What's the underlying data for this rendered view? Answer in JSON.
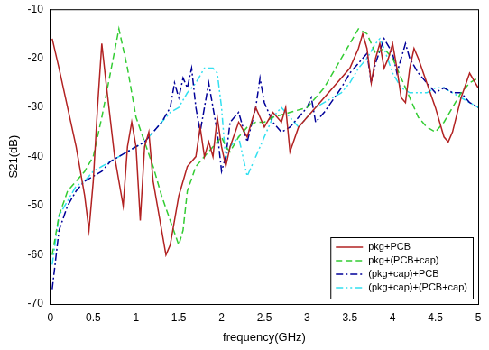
{
  "chart_data": {
    "type": "line",
    "x_label": "frequency(GHz)",
    "y_label": "S21(dB)",
    "xlim": [
      0,
      5
    ],
    "xticks": [
      0,
      0.5,
      1,
      1.5,
      2,
      2.5,
      3,
      3.5,
      4,
      4.5,
      5
    ],
    "ylim": [
      -70,
      -10
    ],
    "yticks": [
      -70,
      -60,
      -50,
      -40,
      -30,
      -20,
      -10
    ],
    "grid": false,
    "legend": "lower right",
    "series": [
      {
        "name": "pkg+PCB",
        "color": "#b22222",
        "line_style": "solid",
        "x": [
          0.02,
          0.1,
          0.2,
          0.3,
          0.4,
          0.45,
          0.5,
          0.55,
          0.6,
          0.65,
          0.75,
          0.8,
          0.85,
          0.9,
          0.95,
          1.0,
          1.05,
          1.1,
          1.15,
          1.2,
          1.3,
          1.35,
          1.4,
          1.5,
          1.6,
          1.7,
          1.75,
          1.8,
          1.85,
          1.9,
          1.95,
          2.0,
          2.05,
          2.1,
          2.2,
          2.3,
          2.4,
          2.5,
          2.6,
          2.7,
          2.75,
          2.8,
          2.9,
          3.0,
          3.2,
          3.4,
          3.5,
          3.6,
          3.65,
          3.7,
          3.75,
          3.8,
          3.85,
          3.9,
          3.95,
          4.0,
          4.05,
          4.1,
          4.15,
          4.2,
          4.25,
          4.3,
          4.4,
          4.5,
          4.6,
          4.65,
          4.7,
          4.8,
          4.9,
          5.0
        ],
        "values": [
          -16,
          -22,
          -30,
          -38,
          -48,
          -55,
          -45,
          -30,
          -17,
          -25,
          -40,
          -45,
          -50,
          -38,
          -33,
          -38,
          -53,
          -38,
          -35,
          -45,
          -55,
          -60,
          -58,
          -48,
          -42,
          -40,
          -34,
          -40,
          -37,
          -40,
          -32,
          -38,
          -42,
          -38,
          -33,
          -36,
          -30,
          -34,
          -31,
          -33,
          -30,
          -39,
          -34,
          -32,
          -28,
          -24,
          -22,
          -18,
          -15,
          -18,
          -25,
          -20,
          -17,
          -22,
          -20,
          -17,
          -22,
          -28,
          -29,
          -22,
          -18,
          -20,
          -25,
          -30,
          -36,
          -37,
          -35,
          -28,
          -23,
          -26
        ]
      },
      {
        "name": "pkg+(PCB+cap)",
        "color": "#33cc33",
        "line_style": "dashed",
        "x": [
          0.02,
          0.1,
          0.2,
          0.3,
          0.4,
          0.5,
          0.6,
          0.7,
          0.8,
          0.9,
          1.0,
          1.1,
          1.2,
          1.3,
          1.4,
          1.5,
          1.55,
          1.6,
          1.7,
          1.8,
          1.9,
          2.0,
          2.05,
          2.1,
          2.2,
          2.3,
          2.4,
          2.5,
          2.6,
          2.8,
          3.0,
          3.2,
          3.4,
          3.5,
          3.6,
          3.7,
          3.8,
          3.9,
          4.0,
          4.1,
          4.2,
          4.3,
          4.4,
          4.5,
          4.6,
          4.7,
          4.8,
          4.9,
          5.0
        ],
        "values": [
          -60,
          -52,
          -47,
          -45,
          -43,
          -40,
          -32,
          -23,
          -14,
          -22,
          -32,
          -37,
          -42,
          -48,
          -53,
          -58,
          -55,
          -47,
          -42,
          -40,
          -38,
          -36,
          -38,
          -39,
          -36,
          -34,
          -33,
          -33,
          -32,
          -31,
          -30,
          -26,
          -20,
          -17,
          -14,
          -15,
          -19,
          -18,
          -20,
          -24,
          -28,
          -32,
          -34,
          -35,
          -33,
          -30,
          -27,
          -25,
          -24
        ]
      },
      {
        "name": "(pkg+cap)+PCB",
        "color": "#000099",
        "line_style": "dashdot",
        "x": [
          0.02,
          0.1,
          0.2,
          0.3,
          0.4,
          0.5,
          0.6,
          0.7,
          0.8,
          0.9,
          1.0,
          1.1,
          1.2,
          1.3,
          1.4,
          1.45,
          1.5,
          1.55,
          1.6,
          1.65,
          1.7,
          1.75,
          1.8,
          1.85,
          1.9,
          1.95,
          2.0,
          2.05,
          2.1,
          2.2,
          2.3,
          2.4,
          2.45,
          2.5,
          2.6,
          2.7,
          2.8,
          2.9,
          3.0,
          3.05,
          3.1,
          3.2,
          3.4,
          3.5,
          3.6,
          3.7,
          3.75,
          3.8,
          3.9,
          4.0,
          4.05,
          4.1,
          4.15,
          4.2,
          4.3,
          4.4,
          4.5,
          4.6,
          4.7,
          4.8,
          4.9,
          5.0
        ],
        "values": [
          -67,
          -55,
          -50,
          -47,
          -45,
          -44,
          -43,
          -41,
          -40,
          -39,
          -38,
          -37,
          -35,
          -33,
          -30,
          -25,
          -28,
          -24,
          -26,
          -22,
          -30,
          -35,
          -30,
          -25,
          -30,
          -35,
          -43,
          -40,
          -33,
          -31,
          -37,
          -30,
          -24,
          -29,
          -33,
          -35,
          -34,
          -32,
          -30,
          -28,
          -33,
          -31,
          -26,
          -23,
          -21,
          -19,
          -25,
          -21,
          -16,
          -19,
          -23,
          -20,
          -17,
          -20,
          -23,
          -25,
          -27,
          -26,
          -27,
          -27,
          -29,
          -30
        ]
      },
      {
        "name": "(pkg+cap)+(PCB+cap)",
        "color": "#33e0f0",
        "line_style": "dashdotdot",
        "x": [
          0.02,
          0.1,
          0.2,
          0.3,
          0.4,
          0.5,
          0.6,
          0.7,
          0.8,
          0.9,
          1.0,
          1.1,
          1.2,
          1.3,
          1.4,
          1.5,
          1.6,
          1.7,
          1.8,
          1.9,
          1.95,
          2.0,
          2.05,
          2.1,
          2.2,
          2.3,
          2.4,
          2.5,
          2.6,
          2.7,
          2.8,
          2.9,
          3.0,
          3.1,
          3.2,
          3.4,
          3.5,
          3.6,
          3.7,
          3.8,
          3.85,
          3.9,
          4.0,
          4.1,
          4.2,
          4.3,
          4.4,
          4.5,
          4.6,
          4.7,
          4.8,
          4.9,
          5.0
        ],
        "values": [
          -62,
          -52,
          -49,
          -46,
          -45,
          -43,
          -42,
          -41,
          -40,
          -39,
          -38,
          -37,
          -35,
          -33,
          -31,
          -30,
          -27,
          -25,
          -22,
          -22,
          -23,
          -30,
          -41,
          -38,
          -36,
          -44,
          -40,
          -36,
          -32,
          -30,
          -32,
          -34,
          -32,
          -30,
          -29,
          -27,
          -25,
          -22,
          -20,
          -17,
          -16,
          -18,
          -23,
          -26,
          -27,
          -27,
          -27,
          -26,
          -26,
          -27,
          -28,
          -29,
          -30
        ]
      }
    ]
  }
}
